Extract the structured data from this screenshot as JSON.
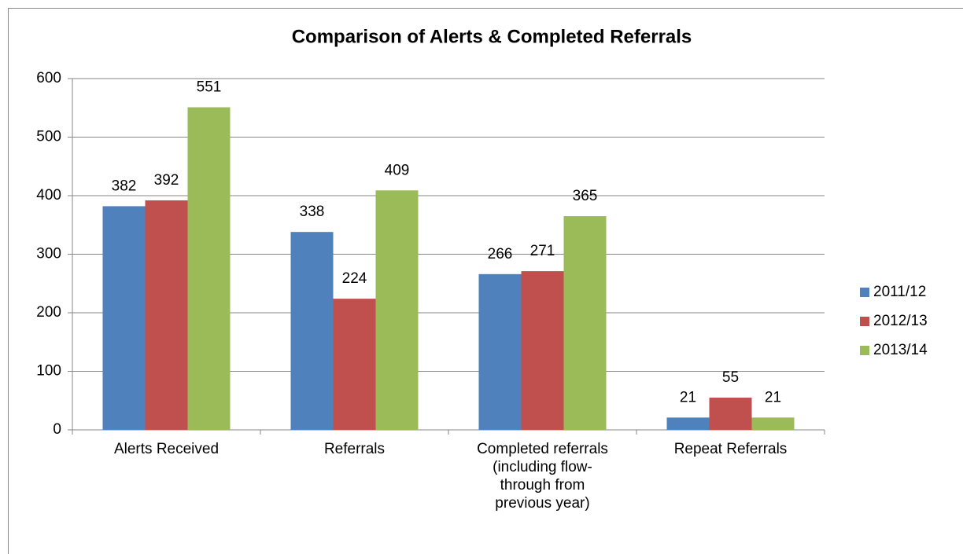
{
  "chart_data": {
    "type": "bar",
    "title": "Comparison of Alerts & Completed Referrals",
    "categories": [
      "Alerts Received",
      "Referrals",
      "Completed referrals (including flow-through from previous year)",
      "Repeat Referrals"
    ],
    "series": [
      {
        "name": "2011/12",
        "color": "#4f81bd",
        "values": [
          382,
          338,
          266,
          21
        ]
      },
      {
        "name": "2012/13",
        "color": "#c0504d",
        "values": [
          392,
          224,
          271,
          55
        ]
      },
      {
        "name": "2013/14",
        "color": "#9bbb59",
        "values": [
          551,
          409,
          365,
          21
        ]
      }
    ],
    "ylim": [
      0,
      600
    ],
    "yticks": [
      0,
      100,
      200,
      300,
      400,
      500,
      600
    ],
    "grid": true,
    "legend": "right"
  }
}
